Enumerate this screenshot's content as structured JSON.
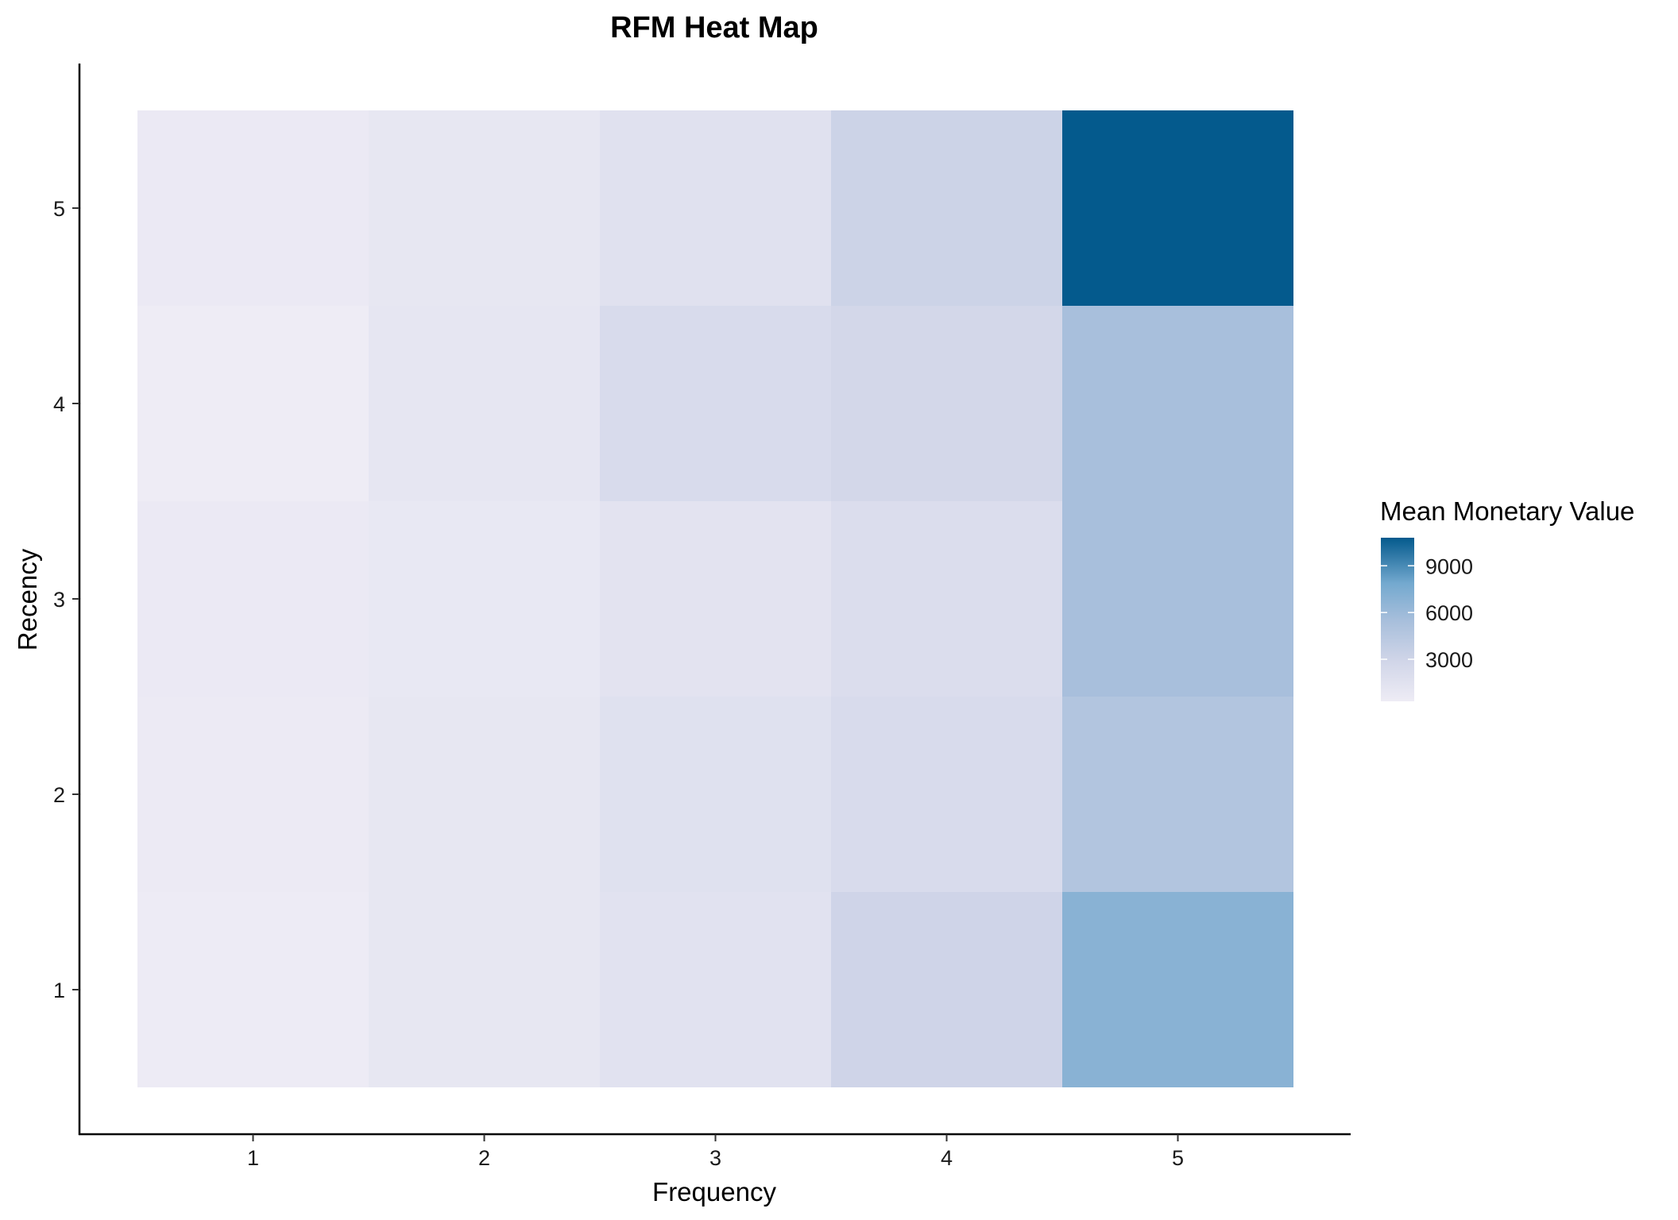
{
  "chart_data": {
    "type": "heatmap",
    "title": "RFM Heat Map",
    "xlabel": "Frequency",
    "ylabel": "Recency",
    "x_categories": [
      "1",
      "2",
      "3",
      "4",
      "5"
    ],
    "y_categories": [
      "1",
      "2",
      "3",
      "4",
      "5"
    ],
    "values": [
      {
        "x": "1",
        "y": "5",
        "value": 600
      },
      {
        "x": "2",
        "y": "5",
        "value": 900
      },
      {
        "x": "3",
        "y": "5",
        "value": 1500
      },
      {
        "x": "4",
        "y": "5",
        "value": 3200
      },
      {
        "x": "5",
        "y": "5",
        "value": 10800
      },
      {
        "x": "1",
        "y": "4",
        "value": 300
      },
      {
        "x": "2",
        "y": "4",
        "value": 1000
      },
      {
        "x": "3",
        "y": "4",
        "value": 2200
      },
      {
        "x": "4",
        "y": "4",
        "value": 2700
      },
      {
        "x": "5",
        "y": "4",
        "value": 5400
      },
      {
        "x": "1",
        "y": "3",
        "value": 600
      },
      {
        "x": "2",
        "y": "3",
        "value": 800
      },
      {
        "x": "3",
        "y": "3",
        "value": 1300
      },
      {
        "x": "4",
        "y": "3",
        "value": 2000
      },
      {
        "x": "5",
        "y": "3",
        "value": 5400
      },
      {
        "x": "1",
        "y": "2",
        "value": 500
      },
      {
        "x": "2",
        "y": "2",
        "value": 900
      },
      {
        "x": "3",
        "y": "2",
        "value": 1600
      },
      {
        "x": "4",
        "y": "2",
        "value": 2200
      },
      {
        "x": "5",
        "y": "2",
        "value": 4800
      },
      {
        "x": "1",
        "y": "1",
        "value": 400
      },
      {
        "x": "2",
        "y": "1",
        "value": 900
      },
      {
        "x": "3",
        "y": "1",
        "value": 1400
      },
      {
        "x": "4",
        "y": "1",
        "value": 3000
      },
      {
        "x": "5",
        "y": "1",
        "value": 6900
      }
    ],
    "legend": {
      "title": "Mean Monetary Value",
      "ticks": [
        3000,
        6000,
        9000
      ],
      "range": [
        300,
        10800
      ],
      "placement": "right"
    },
    "grid": false,
    "colors": {
      "low": "#eeecf5",
      "mid1": "#d0d5e8",
      "mid2": "#a6bedb",
      "mid3": "#74a9cf",
      "high": "#045a8d"
    }
  }
}
